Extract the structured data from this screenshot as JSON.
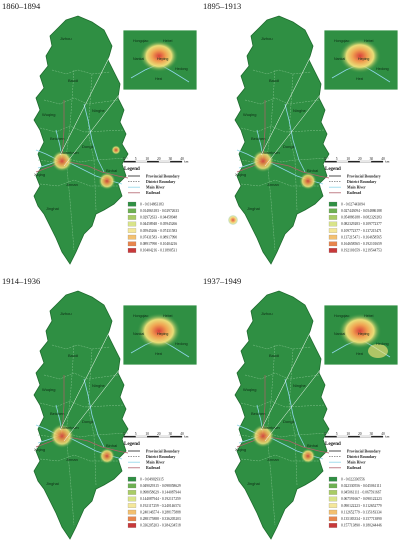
{
  "colors": {
    "map_fill": "#2f8f43",
    "map_outline": "#1e6b2e",
    "district_line": "#7fc08a",
    "river": "#8fd6e8",
    "railroad": "#b0606a",
    "hotspot_yellow": "#f2e27a",
    "hotspot_orange": "#f0a050",
    "hotspot_red": "#d8403a",
    "ramp": [
      "#2f8f43",
      "#6db052",
      "#a9cc66",
      "#d9e48a",
      "#f4e79a",
      "#f3c070",
      "#e8854d",
      "#c8383a"
    ]
  },
  "legend_static": {
    "heading": "Legend",
    "provincial_boundary": "Provincial Boundary",
    "district_boundary": "District Boundary",
    "main_river": "Main River",
    "railroad": "Railroad",
    "scale_unit": "km",
    "scale_ticks": [
      "0",
      "5",
      "10",
      "20",
      "30",
      "40"
    ]
  },
  "district_labels": [
    {
      "key": "jizhou",
      "text": "Jizhou"
    },
    {
      "key": "baodi",
      "text": "Baodi"
    },
    {
      "key": "wuqing",
      "text": "Wuqing"
    },
    {
      "key": "ninghe",
      "text": "Ninghe"
    },
    {
      "key": "beichen",
      "text": "Beichen"
    },
    {
      "key": "dongli",
      "text": "Dongli"
    },
    {
      "key": "xiqing",
      "text": "Xiqing"
    },
    {
      "key": "jinnan",
      "text": "Jinnan"
    },
    {
      "key": "binhai",
      "text": "Binhai"
    },
    {
      "key": "jinghai",
      "text": "Jinghai"
    },
    {
      "key": "downtown",
      "text": "Downtown"
    }
  ],
  "inset_labels": [
    "Hongqiao",
    "Hebei",
    "Nankai",
    "Heping",
    "Hedong",
    "Hexi"
  ],
  "panels": [
    {
      "id": "p1",
      "title": "1860–1894",
      "legend_ranges": [
        "0 - 0.014863183",
        "0.014863183 - 0.02972633",
        "0.02972633 - 0.04458948",
        "0.04458948 - 0.05945266",
        "0.05945266 - 0.07431583",
        "0.07431583 - 0.08917990",
        "0.08917990 - 0.10404216",
        "0.10404216 - 0.11890531"
      ],
      "hotspots": {
        "downtown": 0.6,
        "binhai": 0.55,
        "east": 0.15,
        "south": 0.0,
        "inset_main": 0.75,
        "inset_se": 0.0
      }
    },
    {
      "id": "p2",
      "title": "1895–1913",
      "legend_ranges": [
        "0 - 0.027443094",
        "0.027443094 - 0.054886188",
        "0.054886188 - 0.082329283",
        "0.082329283 - 0.109772377",
        "0.109772377 - 0.137215471",
        "0.137215471 - 0.164658565",
        "0.164658565 - 0.192101659",
        "0.192101659 - 0.219544753"
      ],
      "hotspots": {
        "downtown": 0.7,
        "binhai": 0.55,
        "east": 0.0,
        "south": 0.25,
        "inset_main": 0.9,
        "inset_se": 0.0
      }
    },
    {
      "id": "p3",
      "title": "1914–1936",
      "legend_ranges": [
        "0 - 0.049029315",
        "0.049029315 - 0.098058629",
        "0.098058629 - 0.144087944",
        "0.144087944 - 0.192117259",
        "0.192117259 - 0.240146574",
        "0.240146574 - 0.288175888",
        "0.288175888 - 0.336205203",
        "0.336205203 - 0.384234518"
      ],
      "hotspots": {
        "downtown": 0.85,
        "binhai": 0.4,
        "east": 0.0,
        "south": 0.0,
        "inset_main": 1.0,
        "inset_se": 0.0
      }
    },
    {
      "id": "p4",
      "title": "1937–1949",
      "legend_ranges": [
        "0 - 0.022330556",
        "0.022330556 - 0.045061111",
        "0.045061111 - 0.067591667",
        "0.067591667 - 0.090122223",
        "0.090122223 - 0.112652779",
        "0.112652779 - 0.135183334",
        "0.135183334 - 0.157713890",
        "0.157713890 - 0.180244446"
      ],
      "hotspots": {
        "downtown": 0.75,
        "binhai": 0.3,
        "east": 0.0,
        "south": 0.0,
        "inset_main": 0.95,
        "inset_se": 0.45
      }
    }
  ]
}
